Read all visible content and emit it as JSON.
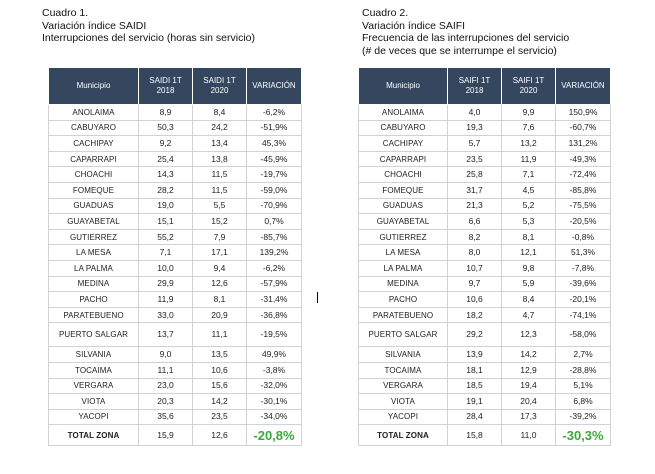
{
  "cuadro1": {
    "caption": [
      "Cuadro 1.",
      "Variación índice SAIDI",
      "Interrupciones del servicio (horas sin servicio)"
    ],
    "headers": [
      "Municipio",
      "SAIDI 1T 2018",
      "SAIDI 1T 2020",
      "VARIACIÓN"
    ],
    "rows": [
      [
        "ANOLAIMA",
        "8,9",
        "8,4",
        "-6,2%"
      ],
      [
        "CABUYARO",
        "50,3",
        "24,2",
        "-51,9%"
      ],
      [
        "CACHIPAY",
        "9,2",
        "13,4",
        "45,3%"
      ],
      [
        "CAPARRAPI",
        "25,4",
        "13,8",
        "-45,9%"
      ],
      [
        "CHOACHI",
        "14,3",
        "11,5",
        "-19,7%"
      ],
      [
        "FOMEQUE",
        "28,2",
        "11,5",
        "-59,0%"
      ],
      [
        "GUADUAS",
        "19,0",
        "5,5",
        "-70,9%"
      ],
      [
        "GUAYABETAL",
        "15,1",
        "15,2",
        "0,7%"
      ],
      [
        "GUTIERREZ",
        "55,2",
        "7,9",
        "-85,7%"
      ],
      [
        "LA MESA",
        "7,1",
        "17,1",
        "139,2%"
      ],
      [
        "LA PALMA",
        "10,0",
        "9,4",
        "-6,2%"
      ],
      [
        "MEDINA",
        "29,9",
        "12,6",
        "-57,9%"
      ],
      [
        "PACHO",
        "11,9",
        "8,1",
        "-31,4%"
      ],
      [
        "PARATEBUENO",
        "33,0",
        "20,9",
        "-36,8%"
      ],
      [
        "PUERTO SALGAR",
        "13,7",
        "11,1",
        "-19,5%"
      ],
      [
        "SILVANIA",
        "9,0",
        "13,5",
        "49,9%"
      ],
      [
        "TOCAIMA",
        "11,1",
        "10,6",
        "-3,8%"
      ],
      [
        "VERGARA",
        "23,0",
        "15,6",
        "-32,0%"
      ],
      [
        "VIOTA",
        "20,3",
        "14,2",
        "-30,1%"
      ],
      [
        "YACOPI",
        "35,6",
        "23,5",
        "-34,0%"
      ]
    ],
    "total": [
      "TOTAL ZONA",
      "15,9",
      "12,6",
      "-20,8%"
    ]
  },
  "cuadro2": {
    "caption": [
      "Cuadro 2.",
      "Variación índice SAIFI",
      "Frecuencia de las interrupciones del servicio",
      "(# de veces que se interrumpe el servicio)"
    ],
    "headers": [
      "Municipio",
      "SAIFI 1T 2018",
      "SAIFI 1T 2020",
      "VARIACIÓN"
    ],
    "rows": [
      [
        "ANOLAIMA",
        "4,0",
        "9,9",
        "150,9%"
      ],
      [
        "CABUYARO",
        "19,3",
        "7,6",
        "-60,7%"
      ],
      [
        "CACHIPAY",
        "5,7",
        "13,2",
        "131,2%"
      ],
      [
        "CAPARRAPI",
        "23,5",
        "11,9",
        "-49,3%"
      ],
      [
        "CHOACHI",
        "25,8",
        "7,1",
        "-72,4%"
      ],
      [
        "FOMEQUE",
        "31,7",
        "4,5",
        "-85,8%"
      ],
      [
        "GUADUAS",
        "21,3",
        "5,2",
        "-75,5%"
      ],
      [
        "GUAYABETAL",
        "6,6",
        "5,3",
        "-20,5%"
      ],
      [
        "GUTIERREZ",
        "8,2",
        "8,1",
        "-0,8%"
      ],
      [
        "LA MESA",
        "8,0",
        "12,1",
        "51,3%"
      ],
      [
        "LA PALMA",
        "10,7",
        "9,8",
        "-7,8%"
      ],
      [
        "MEDINA",
        "9,7",
        "5,9",
        "-39,6%"
      ],
      [
        "PACHO",
        "10,6",
        "8,4",
        "-20,1%"
      ],
      [
        "PARATEBUENO",
        "18,2",
        "4,7",
        "-74,1%"
      ],
      [
        "PUERTO SALGAR",
        "29,2",
        "12,3",
        "-58,0%"
      ],
      [
        "SILVANIA",
        "13,9",
        "14,2",
        "2,7%"
      ],
      [
        "TOCAIMA",
        "18,1",
        "12,9",
        "-28,8%"
      ],
      [
        "VERGARA",
        "18,5",
        "19,4",
        "5,1%"
      ],
      [
        "VIOTA",
        "19,1",
        "20,4",
        "6,8%"
      ],
      [
        "YACOPI",
        "28,4",
        "17,3",
        "-39,2%"
      ]
    ],
    "total": [
      "TOTAL ZONA",
      "15,8",
      "11,0",
      "-30,3%"
    ]
  }
}
